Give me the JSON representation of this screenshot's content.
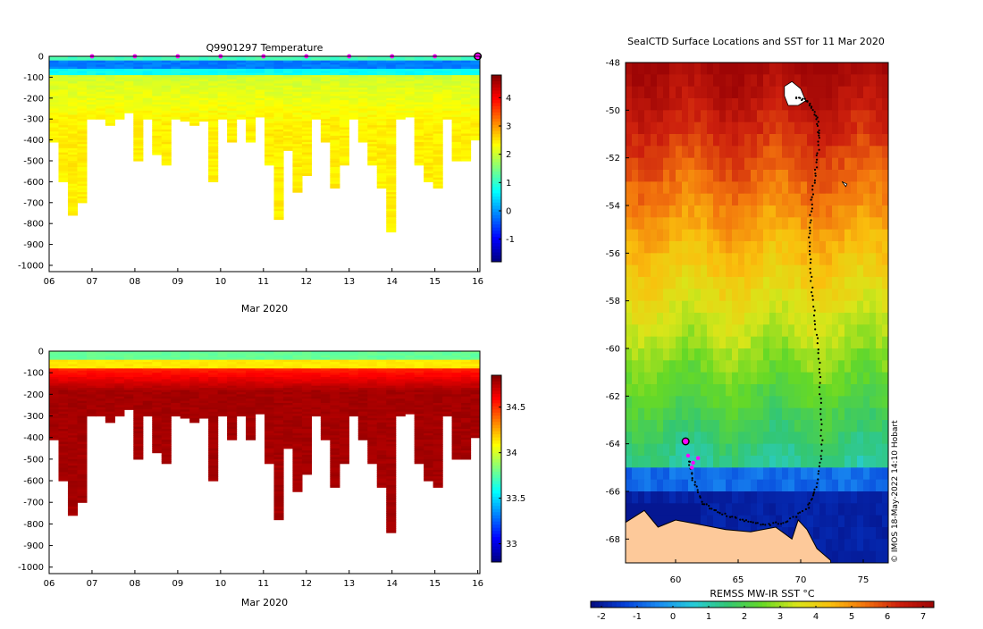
{
  "chart_data": [
    {
      "type": "heatmap",
      "name": "temperature-section",
      "title": "Q9901297  Temperature",
      "xlabel": "Mar 2020",
      "ylabel": "",
      "x_ticks": [
        "06",
        "07",
        "08",
        "09",
        "10",
        "11",
        "12",
        "13",
        "14",
        "15",
        "16"
      ],
      "y_ticks": [
        0,
        -100,
        -200,
        -300,
        -400,
        -500,
        -600,
        -700,
        -800,
        -900,
        -1000
      ],
      "xlim": [
        6,
        16.05
      ],
      "ylim": [
        -1030,
        0
      ],
      "colorbar": {
        "ticks": [
          4,
          3,
          2,
          1,
          0,
          -1
        ],
        "range": [
          -1.8,
          4.8
        ]
      },
      "profile_markers_day": [
        7,
        8,
        9,
        10,
        11,
        12,
        13,
        14,
        15
      ],
      "latest_profile_day": 16,
      "profile_max_depth": [
        410,
        600,
        760,
        700,
        300,
        300,
        330,
        300,
        270,
        500,
        300,
        470,
        520,
        300,
        310,
        330,
        310,
        600,
        300,
        410,
        300,
        410,
        290,
        520,
        780,
        450,
        650,
        570,
        300,
        410,
        630,
        520,
        300,
        410,
        520,
        630,
        840,
        300,
        290,
        520,
        600,
        630,
        300,
        500,
        500,
        400
      ]
    },
    {
      "type": "heatmap",
      "name": "salinity-section",
      "title": "",
      "xlabel": "Mar 2020",
      "ylabel": "",
      "x_ticks": [
        "06",
        "07",
        "08",
        "09",
        "10",
        "11",
        "12",
        "13",
        "14",
        "15",
        "16"
      ],
      "y_ticks": [
        0,
        -100,
        -200,
        -300,
        -400,
        -500,
        -600,
        -700,
        -800,
        -900,
        -1000
      ],
      "xlim": [
        6,
        16.05
      ],
      "ylim": [
        -1030,
        0
      ],
      "colorbar": {
        "ticks": [
          34.5,
          34,
          33.5,
          33
        ],
        "range": [
          32.8,
          34.85
        ]
      }
    },
    {
      "type": "heatmap",
      "name": "sst-map",
      "title": "SealCTD Surface Locations and SST for 11 Mar 2020",
      "xlabel": "",
      "ylabel": "",
      "x_ticks": [
        60,
        65,
        70,
        75
      ],
      "y_ticks": [
        -48,
        -50,
        -52,
        -54,
        -56,
        -58,
        -60,
        -62,
        -64,
        -66,
        -68
      ],
      "xlim": [
        56,
        77
      ],
      "ylim": [
        -69,
        -48
      ],
      "colorbar": {
        "label": "REMSS MW-IR SST °C",
        "ticks": [
          -2,
          -1,
          0,
          1,
          2,
          3,
          4,
          5,
          6,
          7
        ],
        "range": [
          -2.3,
          7.3
        ]
      },
      "track_lonlat": [
        [
          69.6,
          -49.5
        ],
        [
          70.6,
          -49.6
        ],
        [
          71.3,
          -50.3
        ],
        [
          71.5,
          -51.2
        ],
        [
          71.2,
          -52.5
        ],
        [
          70.9,
          -53.8
        ],
        [
          70.7,
          -55.2
        ],
        [
          70.8,
          -56.8
        ],
        [
          71.1,
          -58.6
        ],
        [
          71.5,
          -60.4
        ],
        [
          71.6,
          -62.3
        ],
        [
          71.7,
          -64.3
        ],
        [
          71.2,
          -65.8
        ],
        [
          70.6,
          -66.7
        ],
        [
          68.8,
          -67.3
        ],
        [
          67.0,
          -67.4
        ],
        [
          65.3,
          -67.2
        ],
        [
          63.5,
          -66.9
        ],
        [
          62.2,
          -66.5
        ],
        [
          61.4,
          -65.5
        ],
        [
          61.0,
          -64.6
        ]
      ],
      "current_position_lonlat": [
        60.8,
        -63.9
      ],
      "recent_positions_lonlat": [
        [
          61.0,
          -64.5
        ],
        [
          61.4,
          -64.8
        ],
        [
          61.8,
          -64.6
        ],
        [
          61.3,
          -65.0
        ]
      ],
      "credit": "© IMOS 18-May-2022 14:10 Hobart"
    }
  ],
  "colors": {
    "axis": "#000000",
    "marker": "#ff00ff",
    "track": "#000000",
    "land": "#fdc99a"
  }
}
